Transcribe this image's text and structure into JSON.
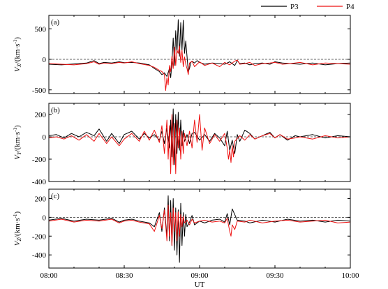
{
  "chart_data": [
    {
      "type": "line",
      "panel_label": "(a)",
      "ylabel_main": "V",
      "ylabel_sub": "X",
      "ylabel_unit": "/(km·s",
      "ylabel_exp": "-1",
      "ylabel_close": ")",
      "ylim": [
        -560,
        720
      ],
      "yticks": [
        -500,
        0,
        500
      ],
      "xlim": [
        0,
        120
      ],
      "xticks": [
        0,
        30,
        60,
        90,
        120
      ],
      "xtick_labels": [],
      "zero_line": true,
      "series": [
        {
          "name": "P3",
          "color": "#000000",
          "x": [
            0,
            5,
            10,
            15,
            18,
            20,
            22,
            25,
            28,
            30,
            33,
            36,
            40,
            42,
            44,
            45,
            46,
            47,
            48,
            48.5,
            49,
            49.5,
            50,
            50.5,
            51,
            51.5,
            52,
            52.5,
            53,
            53.5,
            54,
            54.5,
            55,
            55.5,
            56,
            56.5,
            57,
            58,
            59,
            60,
            62,
            65,
            68,
            70,
            72,
            74,
            75,
            76,
            78,
            80,
            82,
            85,
            88,
            90,
            93,
            96,
            100,
            105,
            110,
            115,
            120
          ],
          "y": [
            -80,
            -90,
            -75,
            -60,
            -20,
            -70,
            -50,
            -60,
            -40,
            -55,
            -50,
            -60,
            -90,
            -150,
            -200,
            -250,
            -220,
            -280,
            -150,
            -300,
            -50,
            350,
            -100,
            470,
            100,
            650,
            50,
            600,
            150,
            640,
            100,
            300,
            50,
            -200,
            -150,
            -50,
            -30,
            -60,
            -20,
            -50,
            -80,
            -60,
            -70,
            -80,
            -40,
            -100,
            -20,
            -70,
            -60,
            -90,
            -70,
            -60,
            -80,
            -40,
            -60,
            -70,
            -80,
            -60,
            -90,
            -70,
            -60
          ]
        },
        {
          "name": "P4",
          "color": "#ee1111",
          "x": [
            0,
            5,
            10,
            15,
            18,
            20,
            22,
            25,
            28,
            30,
            33,
            36,
            40,
            42,
            44,
            45,
            46,
            46.5,
            47,
            47.5,
            48,
            48.5,
            49,
            49.5,
            50,
            50.5,
            51,
            51.5,
            52,
            52.5,
            53,
            53.5,
            54,
            54.5,
            55,
            55.5,
            56,
            57,
            58,
            59,
            60,
            62,
            65,
            68,
            70,
            72,
            74,
            75,
            76,
            78,
            80,
            82,
            85,
            88,
            90,
            93,
            96,
            100,
            105,
            110,
            115,
            120
          ],
          "y": [
            -70,
            -80,
            -90,
            -70,
            -40,
            -80,
            -60,
            -70,
            -50,
            -60,
            -40,
            -70,
            -100,
            -130,
            -180,
            -200,
            -250,
            -510,
            -300,
            -420,
            -100,
            -200,
            50,
            -150,
            200,
            -100,
            150,
            100,
            220,
            -50,
            150,
            -120,
            40,
            -80,
            -150,
            -250,
            -60,
            -30,
            -120,
            -80,
            -40,
            -100,
            -60,
            -120,
            -50,
            -90,
            -30,
            -10,
            -80,
            -70,
            -50,
            -100,
            -70,
            -60,
            -50,
            -80,
            -70,
            -50,
            -90,
            -60,
            -70,
            -80
          ]
        }
      ]
    },
    {
      "type": "line",
      "panel_label": "(b)",
      "ylabel_main": "V",
      "ylabel_sub": "Y",
      "ylabel_unit": "/(km·s",
      "ylabel_exp": "-1",
      "ylabel_close": ")",
      "ylim": [
        -400,
        300
      ],
      "yticks": [
        -400,
        -200,
        0,
        200
      ],
      "xlim": [
        0,
        120
      ],
      "xticks": [
        0,
        30,
        60,
        90,
        120
      ],
      "xtick_labels": [],
      "zero_line": true,
      "series": [
        {
          "name": "P3",
          "color": "#000000",
          "x": [
            0,
            3,
            6,
            9,
            12,
            15,
            18,
            20,
            23,
            25,
            28,
            30,
            33,
            36,
            38,
            40,
            42,
            44,
            45,
            46,
            47,
            48,
            48.5,
            49,
            49.5,
            50,
            50.5,
            51,
            51.5,
            52,
            52.5,
            53,
            53.5,
            54,
            55,
            56,
            57,
            58,
            60,
            62,
            64,
            66,
            68,
            70,
            71,
            72,
            73,
            74,
            75,
            76,
            78,
            80,
            82,
            85,
            88,
            90,
            92,
            95,
            98,
            100,
            105,
            110,
            115,
            120
          ],
          "y": [
            10,
            20,
            -10,
            30,
            0,
            40,
            10,
            70,
            -40,
            30,
            -60,
            20,
            50,
            -20,
            30,
            -10,
            20,
            -30,
            50,
            -60,
            80,
            -100,
            150,
            -180,
            250,
            -250,
            200,
            -150,
            220,
            -120,
            150,
            -80,
            60,
            -40,
            20,
            -60,
            30,
            40,
            -30,
            20,
            -40,
            30,
            -10,
            -80,
            50,
            -120,
            -30,
            -150,
            20,
            -40,
            60,
            30,
            -20,
            10,
            40,
            -10,
            20,
            -30,
            10,
            0,
            20,
            -10,
            10,
            0
          ]
        },
        {
          "name": "P4",
          "color": "#ee1111",
          "x": [
            0,
            3,
            6,
            9,
            12,
            15,
            18,
            20,
            23,
            25,
            28,
            30,
            33,
            36,
            38,
            40,
            42,
            44,
            45,
            46,
            47,
            47.5,
            48,
            48.5,
            49,
            49.5,
            50,
            50.5,
            51,
            51.5,
            52,
            52.5,
            53,
            53.5,
            54,
            55,
            56,
            57,
            58,
            59,
            60,
            61,
            62,
            64,
            66,
            68,
            70,
            71,
            71.5,
            72,
            72.5,
            73,
            73.5,
            74,
            76,
            78,
            80,
            82,
            85,
            88,
            90,
            92,
            95,
            98,
            100,
            105,
            110,
            115,
            120
          ],
          "y": [
            -10,
            0,
            -20,
            10,
            -30,
            20,
            -40,
            30,
            -60,
            0,
            -80,
            -20,
            30,
            -40,
            50,
            -30,
            60,
            -50,
            100,
            -150,
            150,
            -200,
            100,
            -330,
            200,
            -250,
            120,
            -330,
            150,
            -100,
            80,
            -200,
            50,
            -150,
            30,
            -80,
            50,
            -100,
            150,
            -50,
            200,
            -120,
            80,
            -60,
            20,
            -40,
            30,
            -100,
            -200,
            -120,
            -230,
            -80,
            -180,
            -40,
            10,
            -30,
            20,
            -20,
            10,
            30,
            -10,
            20,
            -20,
            -10,
            0,
            -20,
            10,
            -10,
            0
          ]
        }
      ]
    },
    {
      "type": "line",
      "panel_label": "(c)",
      "ylabel_main": "V",
      "ylabel_sub": "Z",
      "ylabel_unit": "/(km·s",
      "ylabel_exp": "-1",
      "ylabel_close": ")",
      "ylim": [
        -540,
        300
      ],
      "yticks": [
        -400,
        -200,
        0,
        200
      ],
      "xlim": [
        0,
        120
      ],
      "xticks": [
        0,
        30,
        60,
        90,
        120
      ],
      "xtick_labels": [
        "08:00",
        "08:30",
        "09:00",
        "09:30",
        "10:00"
      ],
      "xlabel": "UT",
      "zero_line": true,
      "series": [
        {
          "name": "P3",
          "color": "#000000",
          "x": [
            0,
            5,
            10,
            15,
            20,
            25,
            28,
            30,
            33,
            36,
            40,
            42,
            44,
            45,
            46,
            47,
            47.5,
            48,
            48.5,
            49,
            49.5,
            50,
            50.5,
            51,
            51.5,
            52,
            52.5,
            53,
            53.5,
            54,
            54.5,
            55,
            56,
            57,
            58,
            60,
            62,
            65,
            68,
            70,
            71,
            72,
            73,
            75,
            78,
            80,
            85,
            90,
            95,
            100,
            105,
            110,
            115,
            120
          ],
          "y": [
            -30,
            -10,
            -40,
            -20,
            -30,
            -10,
            -50,
            -30,
            -20,
            -40,
            -60,
            -100,
            50,
            -150,
            100,
            -200,
            230,
            -250,
            180,
            -300,
            200,
            -350,
            100,
            -400,
            80,
            -480,
            150,
            -300,
            50,
            -200,
            30,
            -100,
            -50,
            20,
            -80,
            -40,
            -60,
            -30,
            -20,
            -50,
            40,
            -80,
            90,
            -30,
            -40,
            -60,
            -30,
            -50,
            -20,
            -40,
            -30,
            -50,
            -30,
            -40
          ]
        },
        {
          "name": "P4",
          "color": "#ee1111",
          "x": [
            0,
            5,
            10,
            15,
            20,
            25,
            28,
            30,
            33,
            36,
            40,
            42,
            44,
            45,
            46,
            47,
            47.5,
            48,
            48.5,
            49,
            49.5,
            50,
            50.5,
            51,
            51.5,
            52,
            52.5,
            53,
            53.5,
            54,
            55,
            56,
            57,
            58,
            60,
            62,
            65,
            68,
            70,
            71,
            72,
            72.5,
            73,
            74,
            75,
            78,
            80,
            85,
            90,
            95,
            100,
            105,
            110,
            115,
            120
          ],
          "y": [
            -40,
            -20,
            -50,
            -30,
            -40,
            -20,
            -60,
            -40,
            -30,
            -50,
            -70,
            -150,
            20,
            -120,
            80,
            -250,
            130,
            -200,
            50,
            -300,
            100,
            -150,
            50,
            -250,
            60,
            -200,
            30,
            -100,
            10,
            -60,
            -30,
            -80,
            -20,
            -60,
            -40,
            -30,
            -50,
            -40,
            -60,
            -10,
            -150,
            -200,
            -80,
            -130,
            -40,
            -50,
            -30,
            -60,
            -40,
            -30,
            -50,
            -40,
            -30,
            -60,
            -50
          ]
        }
      ]
    }
  ],
  "legend": [
    {
      "label": "P3",
      "color": "#000000"
    },
    {
      "label": "P4",
      "color": "#ee1111"
    }
  ]
}
